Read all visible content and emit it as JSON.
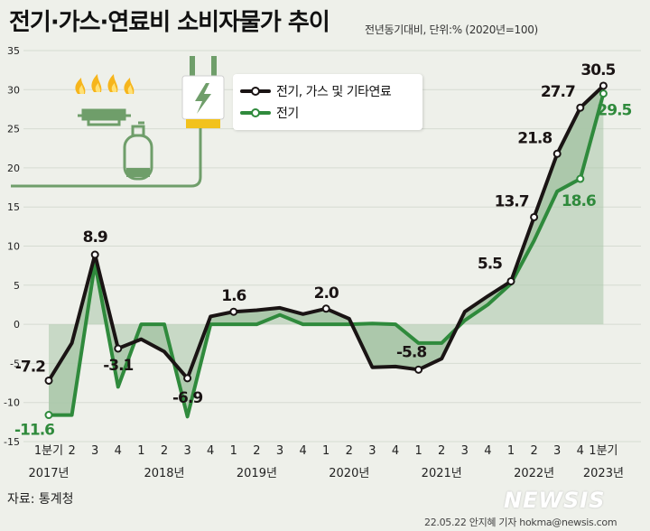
{
  "title": "전기·가스·연료비 소비자물가 추이",
  "subtitle": "전년동기대비, 단위:% (2020년=100)",
  "source": "자료: 통계청",
  "credit": "22.05.22 안지혜 기자 hokma@newsis.com",
  "logo": "NEWSIS",
  "colors": {
    "black": "#1a1414",
    "green": "#2f8a3c",
    "fill": "#a9c6a8",
    "icon": "#6f9e6a",
    "background": "#eef0ea"
  },
  "chart_data": {
    "type": "line",
    "ylim": [
      -15,
      35
    ],
    "yticks": [
      35,
      30,
      25,
      20,
      15,
      10,
      5,
      0,
      -5,
      -10,
      -15
    ],
    "categories": [
      "1분기",
      "2",
      "3",
      "4",
      "1",
      "2",
      "3",
      "4",
      "1",
      "2",
      "3",
      "4",
      "1",
      "2",
      "3",
      "4",
      "1",
      "2",
      "3",
      "4",
      "1",
      "2",
      "3",
      "4",
      "1분기"
    ],
    "year_labels": [
      {
        "label": "2017년",
        "index": 0
      },
      {
        "label": "2018년",
        "index": 5
      },
      {
        "label": "2019년",
        "index": 9
      },
      {
        "label": "2020년",
        "index": 13
      },
      {
        "label": "2021년",
        "index": 17
      },
      {
        "label": "2022년",
        "index": 21
      },
      {
        "label": "2023년",
        "index": 24
      }
    ],
    "series": [
      {
        "name": "전기, 가스 및 기타연료",
        "color": "#1a1414",
        "values": [
          -7.2,
          -2.4,
          8.9,
          -3.1,
          -1.9,
          -3.5,
          -6.9,
          1.0,
          1.6,
          1.8,
          2.1,
          1.3,
          2.0,
          0.7,
          -5.5,
          -5.4,
          -5.8,
          -4.4,
          1.6,
          3.6,
          5.5,
          13.7,
          21.8,
          27.7,
          30.5
        ],
        "labels": {
          "0": "-7.2",
          "2": "8.9",
          "3": "-3.1",
          "6": "-6.9",
          "8": "1.6",
          "12": "2.0",
          "16": "-5.8",
          "20": "5.5",
          "21": "13.7",
          "22": "21.8",
          "23": "27.7",
          "24": "30.5"
        }
      },
      {
        "name": "전기",
        "color": "#2f8a3c",
        "values": [
          -11.6,
          -11.6,
          7.8,
          -8.0,
          0.0,
          0.0,
          -11.8,
          0.0,
          0.0,
          0.0,
          1.2,
          0.0,
          0.0,
          0.0,
          0.1,
          0.0,
          -2.4,
          -2.4,
          0.5,
          2.5,
          5.2,
          10.7,
          17.0,
          18.6,
          29.5
        ],
        "labels": {
          "0": "-11.6",
          "23": "18.6",
          "24": "29.5"
        }
      }
    ]
  }
}
